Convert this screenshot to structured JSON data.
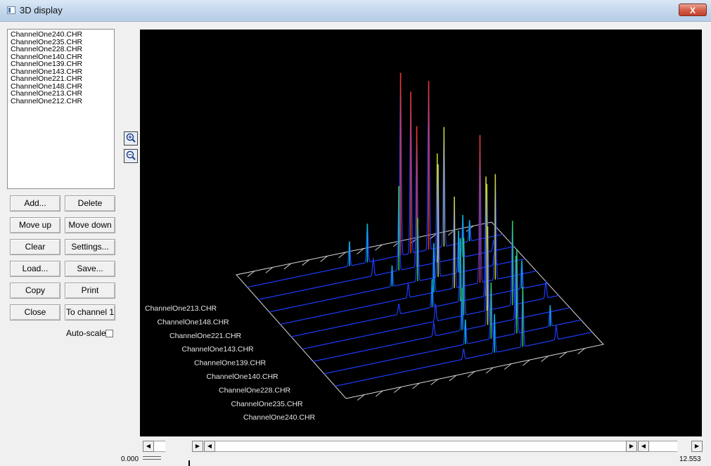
{
  "window": {
    "title": "3D display",
    "close_label": "X"
  },
  "file_list": [
    "ChannelOne240.CHR",
    "ChannelOne235.CHR",
    "ChannelOne228.CHR",
    "ChannelOne140.CHR",
    "ChannelOne139.CHR",
    "ChannelOne143.CHR",
    "ChannelOne221.CHR",
    "ChannelOne148.CHR",
    "ChannelOne213.CHR",
    "ChannelOne212.CHR"
  ],
  "buttons": {
    "add": "Add...",
    "delete": "Delete",
    "move_up": "Move up",
    "move_down": "Move down",
    "clear": "Clear",
    "settings": "Settings...",
    "load": "Load...",
    "save": "Save...",
    "copy": "Copy",
    "print": "Print",
    "close": "Close",
    "to_channel": "To channel 1"
  },
  "autoscale": {
    "label": "Auto-scale",
    "checked": false
  },
  "zoom": {
    "in_icon": "zoom-in-icon",
    "out_icon": "zoom-out-icon"
  },
  "plot": {
    "trace_labels": [
      "ChannelOne213.CHR",
      "ChannelOne148.CHR",
      "ChannelOne221.CHR",
      "ChannelOne143.CHR",
      "ChannelOne139.CHR",
      "ChannelOne140.CHR",
      "ChannelOne228.CHR",
      "ChannelOne235.CHR",
      "ChannelOne240.CHR"
    ],
    "background": "#000000",
    "grid_color": "#dcdcdc",
    "trace_color": "#1e3cff"
  },
  "axis": {
    "min_label": "0.000",
    "max_label": "12.553"
  }
}
